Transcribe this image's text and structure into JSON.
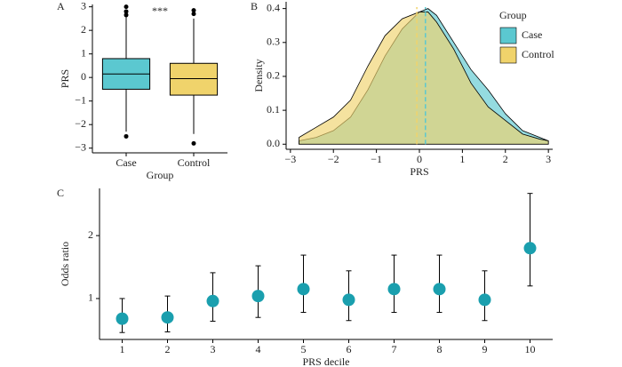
{
  "chart_data": [
    {
      "type": "box",
      "panel": "A",
      "x_label": "Group",
      "y_label": "PRS",
      "annotation": "***",
      "categories": [
        "Case",
        "Control"
      ],
      "colors": [
        "#5bc8d0",
        "#f0d36b"
      ],
      "boxes": [
        {
          "whisker_low": -2.3,
          "q1": -0.5,
          "median": 0.15,
          "q3": 0.8,
          "whisker_high": 2.6,
          "outliers": [
            3.0,
            2.8,
            2.65,
            -2.5
          ]
        },
        {
          "whisker_low": -2.4,
          "q1": -0.75,
          "median": -0.05,
          "q3": 0.6,
          "whisker_high": 2.5,
          "outliers": [
            2.85,
            2.7,
            -2.8
          ]
        }
      ],
      "ylim": [
        -3.2,
        3.1
      ],
      "yticks": [
        {
          "value": -3,
          "label": "−3"
        },
        {
          "value": -2,
          "label": "−2"
        },
        {
          "value": -1,
          "label": "−1"
        },
        0,
        1,
        2,
        3
      ]
    },
    {
      "type": "density",
      "panel": "B",
      "x_label": "PRS",
      "y_label": "Density",
      "legend_title": "Group",
      "x": [
        -2.8,
        -2.4,
        -2,
        -1.6,
        -1.2,
        -0.8,
        -0.4,
        0,
        0.2,
        0.4,
        0.8,
        1.2,
        1.6,
        2,
        2.4,
        2.8,
        3
      ],
      "series": [
        {
          "name": "Case",
          "color": "#5bc8d0",
          "mean": 0.14,
          "values": [
            0.01,
            0.02,
            0.04,
            0.08,
            0.16,
            0.26,
            0.34,
            0.39,
            0.4,
            0.38,
            0.3,
            0.22,
            0.16,
            0.09,
            0.04,
            0.02,
            0.01
          ]
        },
        {
          "name": "Control",
          "color": "#f0d36b",
          "mean": -0.06,
          "values": [
            0.02,
            0.05,
            0.08,
            0.13,
            0.23,
            0.32,
            0.37,
            0.39,
            0.39,
            0.36,
            0.28,
            0.18,
            0.11,
            0.07,
            0.03,
            0.015,
            0.01
          ]
        }
      ],
      "xlim": [
        -3.1,
        3.1
      ],
      "xticks": [
        {
          "value": -3,
          "label": "−3"
        },
        {
          "value": -2,
          "label": "−2"
        },
        {
          "value": -1,
          "label": "−1"
        },
        0,
        1,
        2,
        3
      ],
      "ylim": [
        -0.015,
        0.42
      ],
      "yticks": [
        {
          "value": 0,
          "label": "0.0"
        },
        0.1,
        0.2,
        0.3,
        0.4
      ]
    },
    {
      "type": "errorbar",
      "panel": "C",
      "x_label": "PRS decile",
      "y_label": "Odds ratio",
      "color": "#1a9fae",
      "categories": [
        "1",
        "2",
        "3",
        "4",
        "5",
        "6",
        "7",
        "8",
        "9",
        "10"
      ],
      "values": [
        0.68,
        0.7,
        0.96,
        1.04,
        1.15,
        0.98,
        1.15,
        1.15,
        0.98,
        1.8
      ],
      "lower": [
        0.46,
        0.47,
        0.64,
        0.7,
        0.78,
        0.65,
        0.78,
        0.78,
        0.65,
        1.2
      ],
      "upper": [
        1.0,
        1.04,
        1.41,
        1.52,
        1.69,
        1.44,
        1.69,
        1.69,
        1.44,
        2.67
      ],
      "ylim": [
        0.35,
        2.75
      ],
      "yticks": [
        1,
        2
      ]
    }
  ]
}
